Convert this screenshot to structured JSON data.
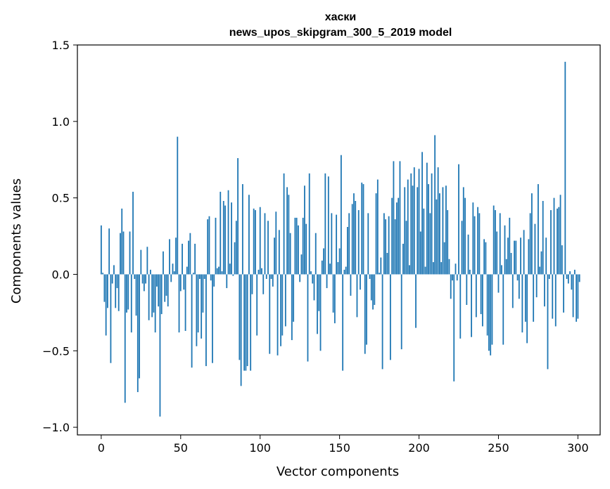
{
  "chart_data": {
    "type": "bar",
    "title_lines": [
      "хаски",
      "news_upos_skipgram_300_5_2019 model"
    ],
    "xlabel": "Vector components",
    "ylabel": "Components values",
    "xlim": [
      -15,
      314
    ],
    "ylim": [
      -1.05,
      1.5
    ],
    "x_ticks": [
      0,
      50,
      100,
      150,
      200,
      250,
      300
    ],
    "x_tick_labels": [
      "0",
      "50",
      "100",
      "150",
      "200",
      "250",
      "300"
    ],
    "y_ticks": [
      -1.0,
      -0.5,
      0.0,
      0.5,
      1.0,
      1.5
    ],
    "y_tick_labels": [
      "−1.0",
      "−0.5",
      "0.0",
      "0.5",
      "1.0",
      "1.5"
    ],
    "grid": false,
    "bar_color": "#1f77b4",
    "x_start": 0,
    "values": [
      0.32,
      0.01,
      -0.18,
      -0.4,
      -0.22,
      0.3,
      -0.58,
      -0.06,
      0.06,
      -0.22,
      -0.09,
      -0.24,
      0.27,
      0.43,
      0.28,
      -0.84,
      -0.25,
      -0.23,
      0.28,
      -0.38,
      0.54,
      -0.03,
      -0.27,
      -0.77,
      -0.68,
      0.16,
      -0.06,
      -0.11,
      -0.06,
      0.18,
      -0.3,
      0.03,
      -0.28,
      -0.25,
      -0.38,
      -0.08,
      -0.21,
      -0.93,
      -0.26,
      0.15,
      -0.18,
      -0.14,
      -0.21,
      0.23,
      -0.05,
      0.07,
      0.02,
      0.24,
      0.9,
      -0.38,
      -0.11,
      0.2,
      -0.1,
      -0.37,
      0.05,
      0.22,
      0.27,
      -0.61,
      0.01,
      0.2,
      -0.47,
      -0.38,
      -0.03,
      -0.42,
      -0.25,
      -0.03,
      -0.6,
      0.36,
      0.38,
      -0.04,
      -0.58,
      -0.08,
      0.37,
      0.04,
      0.05,
      0.54,
      0.02,
      0.48,
      0.45,
      -0.09,
      0.55,
      0.07,
      0.47,
      -0.01,
      0.21,
      0.35,
      0.76,
      -0.56,
      -0.73,
      0.59,
      -0.63,
      -0.63,
      -0.6,
      0.52,
      -0.63,
      -0.13,
      0.43,
      0.42,
      -0.4,
      0.03,
      0.44,
      0.04,
      -0.13,
      0.4,
      -0.03,
      0.35,
      -0.52,
      -0.03,
      -0.08,
      0.24,
      0.41,
      -0.53,
      0.29,
      -0.47,
      -0.4,
      0.66,
      -0.34,
      0.57,
      0.52,
      0.27,
      -0.43,
      -0.31,
      0.37,
      0.37,
      0.32,
      -0.05,
      0.13,
      0.37,
      0.58,
      0.33,
      -0.57,
      0.66,
      0.02,
      -0.06,
      -0.17,
      0.27,
      -0.39,
      -0.24,
      -0.5,
      0.09,
      0.17,
      0.66,
      -0.09,
      0.64,
      0.07,
      0.4,
      -0.25,
      -0.32,
      0.39,
      0.08,
      0.17,
      0.78,
      -0.63,
      0.03,
      0.05,
      0.31,
      0.4,
      -0.14,
      0.46,
      0.53,
      0.48,
      -0.28,
      0.42,
      -0.1,
      0.6,
      0.59,
      -0.52,
      -0.46,
      0.4,
      -0.03,
      -0.17,
      -0.23,
      -0.2,
      0.53,
      0.62,
      0.01,
      0.11,
      -0.62,
      0.4,
      0.36,
      0.14,
      0.38,
      -0.56,
      0.5,
      0.74,
      0.36,
      0.47,
      0.5,
      0.74,
      -0.49,
      0.2,
      0.57,
      0.35,
      0.62,
      0.06,
      0.66,
      0.58,
      0.7,
      -0.35,
      0.57,
      0.69,
      0.28,
      0.8,
      0.43,
      0.05,
      0.73,
      0.59,
      0.4,
      0.66,
      0.08,
      0.91,
      0.49,
      0.7,
      0.53,
      0.08,
      0.57,
      0.21,
      0.58,
      0.42,
      0.1,
      -0.16,
      -0.04,
      -0.7,
      0.07,
      -0.04,
      0.72,
      -0.42,
      0.35,
      0.57,
      0.5,
      -0.2,
      0.26,
      0.03,
      -0.41,
      0.47,
      0.38,
      -0.28,
      0.44,
      0.4,
      -0.26,
      -0.34,
      0.23,
      0.21,
      -0.4,
      -0.5,
      -0.53,
      -0.46,
      0.45,
      0.42,
      0.28,
      -0.12,
      0.4,
      0.06,
      -0.46,
      0.32,
      0.1,
      0.24,
      0.37,
      0.14,
      -0.22,
      0.22,
      0.22,
      -0.04,
      -0.16,
      0.24,
      -0.38,
      0.29,
      -0.31,
      -0.45,
      0.23,
      0.4,
      0.53,
      -0.31,
      0.33,
      -0.15,
      0.59,
      0.05,
      0.15,
      0.48,
      -0.21,
      0.24,
      -0.62,
      -0.03,
      0.42,
      -0.29,
      0.5,
      -0.34,
      0.43,
      0.44,
      0.52,
      0.19,
      -0.25,
      1.39,
      -0.03,
      -0.06,
      0.02,
      -0.1,
      -0.28,
      0.03,
      -0.31,
      -0.29,
      -0.05
    ]
  }
}
